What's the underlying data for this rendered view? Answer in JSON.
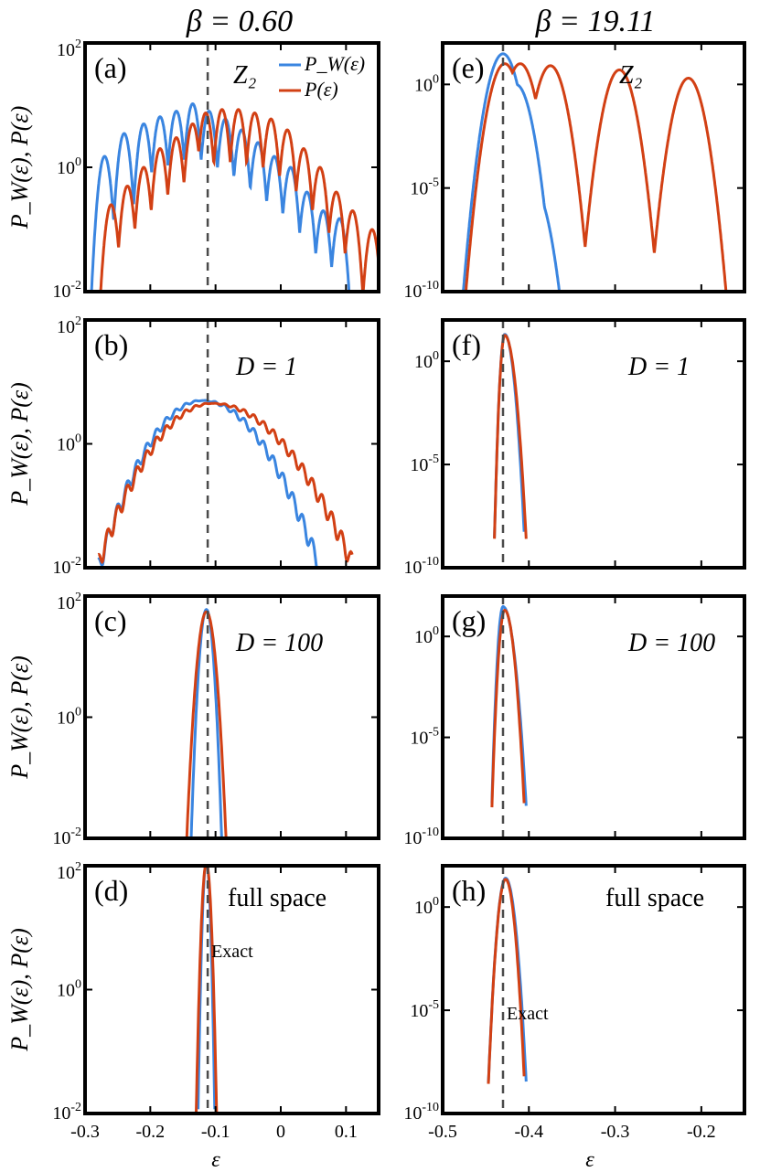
{
  "colors": {
    "blue": "#3a85e0",
    "red": "#d24014",
    "dashed": "#4a4a4a"
  },
  "columns": [
    {
      "title": "β = 0.60",
      "xlabel": "ε",
      "xticks": [
        "-0.3",
        "-0.2",
        "-0.1",
        "0",
        "0.1"
      ]
    },
    {
      "title": "β = 19.11",
      "xlabel": "ε",
      "xticks": [
        "-0.5",
        "-0.4",
        "-0.3",
        "-0.2"
      ]
    }
  ],
  "ylabels": [
    "P_W(ε), P(ε)",
    "P_W(ε), P(ε)",
    "P_W(ε), P(ε)",
    "P_W(ε), P(ε)"
  ],
  "legend": {
    "blue": "P_W(ε)",
    "red": "P(ε)"
  },
  "chart_data": [
    {
      "panel": "(a)",
      "type": "line",
      "annotation": "Z₂",
      "xlim": [
        -0.3,
        0.15
      ],
      "ylim": [
        0.01,
        100
      ],
      "yscale": "log",
      "yticks": [
        "10^2",
        "10^0",
        "10^-2"
      ],
      "exact_line_x": -0.112,
      "series": [
        {
          "name": "P_W(ε)",
          "color": "blue",
          "peaks": [
            [
              -0.27,
              1.5
            ],
            [
              -0.24,
              3.5
            ],
            [
              -0.21,
              5
            ],
            [
              -0.185,
              6.5
            ],
            [
              -0.16,
              8
            ],
            [
              -0.135,
              10.5
            ],
            [
              -0.11,
              8
            ],
            [
              -0.085,
              6
            ],
            [
              -0.06,
              4
            ],
            [
              -0.035,
              2.5
            ],
            [
              -0.01,
              1.5
            ],
            [
              0.015,
              1
            ],
            [
              0.04,
              0.4
            ],
            [
              0.065,
              0.2
            ],
            [
              0.09,
              0.15
            ]
          ]
        },
        {
          "name": "P(ε)",
          "color": "red",
          "peaks": [
            [
              -0.26,
              0.25
            ],
            [
              -0.235,
              0.5
            ],
            [
              -0.21,
              1
            ],
            [
              -0.185,
              2
            ],
            [
              -0.16,
              3
            ],
            [
              -0.135,
              5
            ],
            [
              -0.115,
              7.5
            ],
            [
              -0.09,
              8.5
            ],
            [
              -0.065,
              8.5
            ],
            [
              -0.04,
              7.5
            ],
            [
              -0.015,
              6
            ],
            [
              0.01,
              4
            ],
            [
              0.035,
              2
            ],
            [
              0.06,
              1
            ],
            [
              0.085,
              0.4
            ],
            [
              0.11,
              0.2
            ],
            [
              0.14,
              0.1
            ]
          ]
        }
      ]
    },
    {
      "panel": "(b)",
      "type": "line",
      "annotation": "D = 1",
      "xlim": [
        -0.3,
        0.15
      ],
      "ylim": [
        0.01,
        100
      ],
      "yscale": "log",
      "yticks": [
        "10^2",
        "10^0",
        "10^-2"
      ],
      "exact_line_x": -0.112,
      "series": [
        {
          "name": "P_W(ε)",
          "color": "blue",
          "center": -0.12,
          "peak": 5,
          "left": [
            -0.28,
            0.01
          ],
          "right": [
            0.06,
            0.01
          ]
        },
        {
          "name": "P(ε)",
          "color": "red",
          "center": -0.105,
          "peak": 4.5,
          "left": [
            -0.28,
            0.012
          ],
          "right": [
            0.11,
            0.012
          ]
        }
      ]
    },
    {
      "panel": "(c)",
      "type": "line",
      "annotation": "D = 100",
      "xlim": [
        -0.3,
        0.15
      ],
      "ylim": [
        0.01,
        100
      ],
      "yscale": "log",
      "yticks": [
        "10^2",
        "10^0",
        "10^-2"
      ],
      "exact_line_x": -0.112,
      "series": [
        {
          "name": "P_W(ε)",
          "color": "blue",
          "center": -0.114,
          "peak": 60,
          "halfwidth": 0.017
        },
        {
          "name": "P(ε)",
          "color": "red",
          "center": -0.114,
          "peak": 55,
          "halfwidth": 0.022
        }
      ]
    },
    {
      "panel": "(d)",
      "type": "line",
      "annotation": "full space",
      "exact_label": "Exact",
      "xlim": [
        -0.3,
        0.15
      ],
      "ylim": [
        0.01,
        100
      ],
      "yscale": "log",
      "yticks": [
        "10^2",
        "10^0",
        "10^-2"
      ],
      "exact_line_x": -0.112,
      "series": [
        {
          "name": "P_W(ε)",
          "color": "blue",
          "center": -0.114,
          "peak": 120,
          "halfwidth": 0.009
        },
        {
          "name": "P(ε)",
          "color": "red",
          "center": -0.114,
          "peak": 110,
          "halfwidth": 0.011
        }
      ]
    },
    {
      "panel": "(e)",
      "type": "line",
      "annotation": "Z₂",
      "xlim": [
        -0.5,
        -0.15
      ],
      "ylim": [
        1e-10,
        100
      ],
      "yscale": "log",
      "yticks": [
        "10^0",
        "10^-5",
        "10^-10"
      ],
      "exact_line_x": -0.43,
      "series": [
        {
          "name": "P_W(ε)",
          "color": "blue",
          "peaks": [
            [
              -0.43,
              30
            ],
            [
              -0.415,
              1
            ],
            [
              -0.395,
              1e-05
            ]
          ]
        },
        {
          "name": "P(ε)",
          "color": "red",
          "peaks": [
            [
              -0.428,
              10
            ],
            [
              -0.41,
              10
            ],
            [
              -0.375,
              8
            ],
            [
              -0.295,
              5
            ],
            [
              -0.215,
              2
            ]
          ]
        }
      ]
    },
    {
      "panel": "(f)",
      "type": "line",
      "annotation": "D = 1",
      "xlim": [
        -0.5,
        -0.15
      ],
      "ylim": [
        1e-10,
        100
      ],
      "yscale": "log",
      "yticks": [
        "10^0",
        "10^-5",
        "10^-10"
      ],
      "exact_line_x": -0.43,
      "series": [
        {
          "name": "P_W(ε)",
          "color": "blue",
          "center": -0.428,
          "peak": 20,
          "left": -0.44,
          "right": -0.405
        },
        {
          "name": "P(ε)",
          "color": "red",
          "center": -0.428,
          "peak": 18,
          "left": -0.44,
          "right": -0.403
        }
      ]
    },
    {
      "panel": "(g)",
      "type": "line",
      "annotation": "D = 100",
      "xlim": [
        -0.5,
        -0.15
      ],
      "ylim": [
        1e-10,
        100
      ],
      "yscale": "log",
      "yticks": [
        "10^0",
        "10^-5",
        "10^-10"
      ],
      "exact_line_x": -0.43,
      "series": [
        {
          "name": "P_W(ε)",
          "color": "blue",
          "center": -0.43,
          "peak": 30,
          "left": -0.443,
          "right": -0.403
        },
        {
          "name": "P(ε)",
          "color": "red",
          "center": -0.428,
          "peak": 20,
          "left": -0.443,
          "right": -0.405
        }
      ]
    },
    {
      "panel": "(h)",
      "type": "line",
      "annotation": "full space",
      "exact_label": "Exact",
      "xlim": [
        -0.5,
        -0.15
      ],
      "ylim": [
        1e-10,
        100
      ],
      "yscale": "log",
      "yticks": [
        "10^0",
        "10^-5",
        "10^-10"
      ],
      "exact_line_x": -0.43,
      "series": [
        {
          "name": "P_W(ε)",
          "color": "blue",
          "center": -0.427,
          "peak": 25,
          "left": -0.447,
          "right": -0.403
        },
        {
          "name": "P(ε)",
          "color": "red",
          "center": -0.427,
          "peak": 22,
          "left": -0.447,
          "right": -0.405
        }
      ]
    }
  ]
}
